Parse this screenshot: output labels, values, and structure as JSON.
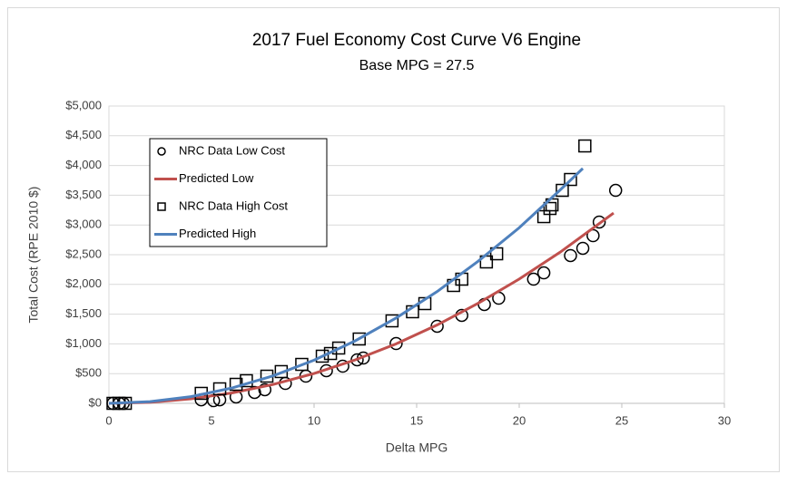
{
  "chart_data": {
    "type": "scatter",
    "title": "2017 Fuel Economy Cost Curve V6 Engine",
    "subtitle": "Base MPG = 27.5",
    "x_label": "Delta MPG",
    "y_label": "Total Cost (RPE 2010 $)",
    "xlim": [
      0,
      30
    ],
    "xticks": [
      0,
      5,
      10,
      15,
      20,
      25,
      30
    ],
    "ylim": [
      0,
      5000
    ],
    "yticks": [
      {
        "value": 0,
        "label": "$0"
      },
      {
        "value": 500,
        "label": "$500"
      },
      {
        "value": 1000,
        "label": "$1,000"
      },
      {
        "value": 1500,
        "label": "$1,500"
      },
      {
        "value": 2000,
        "label": "$2,000"
      },
      {
        "value": 2500,
        "label": "$2,500"
      },
      {
        "value": 3000,
        "label": "$3,000"
      },
      {
        "value": 3500,
        "label": "$3,500"
      },
      {
        "value": 4000,
        "label": "$4,000"
      },
      {
        "value": 4500,
        "label": "$4,500"
      },
      {
        "value": 5000,
        "label": "$5,000"
      }
    ],
    "grid": true,
    "legend": "top-left",
    "series": [
      {
        "name": "NRC Data Low Cost",
        "mark": "circle",
        "color": "#000000",
        "x": [
          0.2,
          0.5,
          0.7,
          4.5,
          5.1,
          5.4,
          6.2,
          7.1,
          7.6,
          8.6,
          9.6,
          10.6,
          11.4,
          12.1,
          12.4,
          14.0,
          16.0,
          17.2,
          18.3,
          19.0,
          20.7,
          21.2,
          22.5,
          23.1,
          23.6,
          23.9,
          24.7
        ],
        "values": [
          0,
          0,
          0,
          60,
          45,
          60,
          107,
          183,
          229,
          335,
          457,
          549,
          625,
          732,
          762,
          1006,
          1296,
          1479,
          1662,
          1768,
          2088,
          2195,
          2485,
          2607,
          2820,
          3049,
          3582
        ]
      },
      {
        "name": "Predicted Low",
        "mark": "line",
        "color": "#c0504d",
        "x": [
          0,
          2,
          4,
          6,
          8,
          10,
          12,
          14,
          16,
          18,
          20,
          22,
          24.6
        ],
        "values": [
          0,
          18,
          76,
          175,
          317,
          502,
          730,
          1000,
          1318,
          1683,
          2090,
          2543,
          3200
        ]
      },
      {
        "name": "NRC Data High Cost",
        "mark": "square",
        "color": "#000000",
        "x": [
          0.2,
          0.5,
          0.8,
          4.5,
          5.4,
          6.2,
          6.7,
          7.7,
          8.4,
          9.4,
          10.4,
          10.8,
          11.2,
          12.2,
          13.8,
          14.8,
          15.4,
          16.8,
          17.2,
          18.4,
          18.9,
          21.2,
          21.5,
          21.6,
          22.1,
          22.5,
          23.2
        ],
        "values": [
          0,
          0,
          0,
          168,
          244,
          320,
          381,
          457,
          534,
          655,
          793,
          838,
          930,
          1082,
          1387,
          1540,
          1677,
          1982,
          2088,
          2378,
          2515,
          3140,
          3277,
          3338,
          3582,
          3765,
          4329
        ]
      },
      {
        "name": "Predicted High",
        "mark": "line",
        "color": "#4f81bd",
        "x": [
          0,
          2,
          4,
          6,
          8,
          10,
          12,
          14,
          16,
          18,
          20,
          22,
          23.1
        ],
        "values": [
          0,
          28,
          113,
          258,
          462,
          726,
          1050,
          1436,
          1880,
          2390,
          2953,
          3590,
          3950
        ]
      }
    ]
  }
}
